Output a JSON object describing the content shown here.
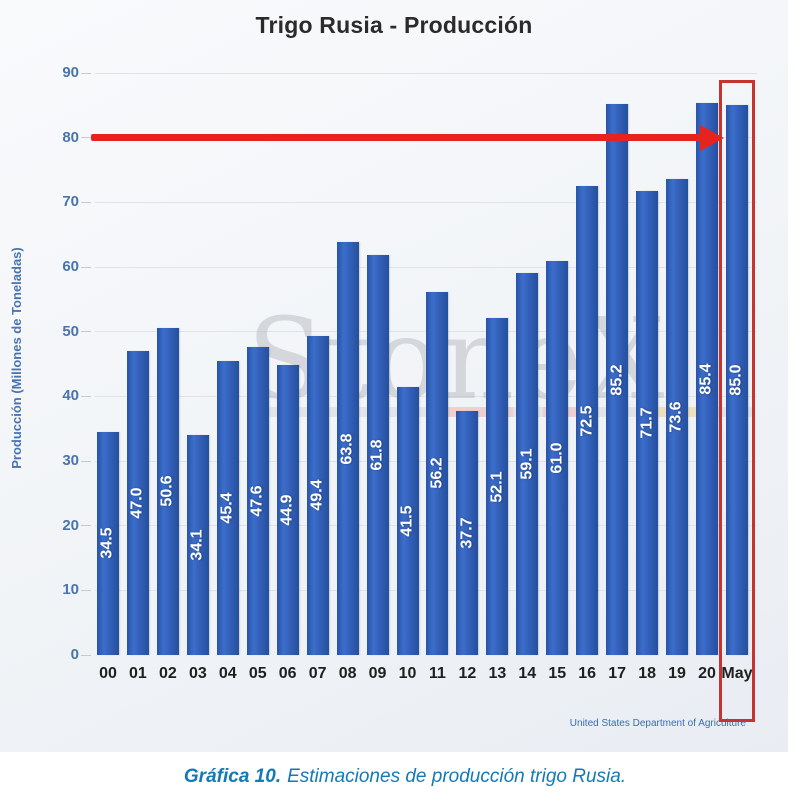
{
  "title": "Trigo Rusia - Producción",
  "chart_data": {
    "type": "bar",
    "categories": [
      "00",
      "01",
      "02",
      "03",
      "04",
      "05",
      "06",
      "07",
      "08",
      "09",
      "10",
      "11",
      "12",
      "13",
      "14",
      "15",
      "16",
      "17",
      "18",
      "19",
      "20",
      "May"
    ],
    "values": [
      34.5,
      47.0,
      50.6,
      34.1,
      45.4,
      47.6,
      44.9,
      49.4,
      63.8,
      61.8,
      41.5,
      56.2,
      37.7,
      52.1,
      59.1,
      61.0,
      72.5,
      85.2,
      71.7,
      73.6,
      85.4,
      85.0
    ],
    "title": "Trigo Rusia - Producción",
    "xlabel": "",
    "ylabel": "Producción (Millones de Toneladas)",
    "ylim": [
      0,
      90
    ],
    "yticks": [
      0,
      10,
      20,
      30,
      40,
      50,
      60,
      70,
      80,
      90
    ],
    "grid": "horizontal",
    "legend": "none",
    "bar_color": "#2f5fb6",
    "highlight_category": "May",
    "highlight_value": "85.0",
    "highlight_color": "#f0a30f",
    "annotation_arrow_level": 80,
    "annotation_arrow_color": "#e8231d",
    "highlight_box_color": "#c53431",
    "watermark": "StoneX",
    "source": "United States Department of Agriculture"
  },
  "caption": {
    "label": "Gráfica 10.",
    "text": "Estimaciones de producción trigo Rusia."
  }
}
